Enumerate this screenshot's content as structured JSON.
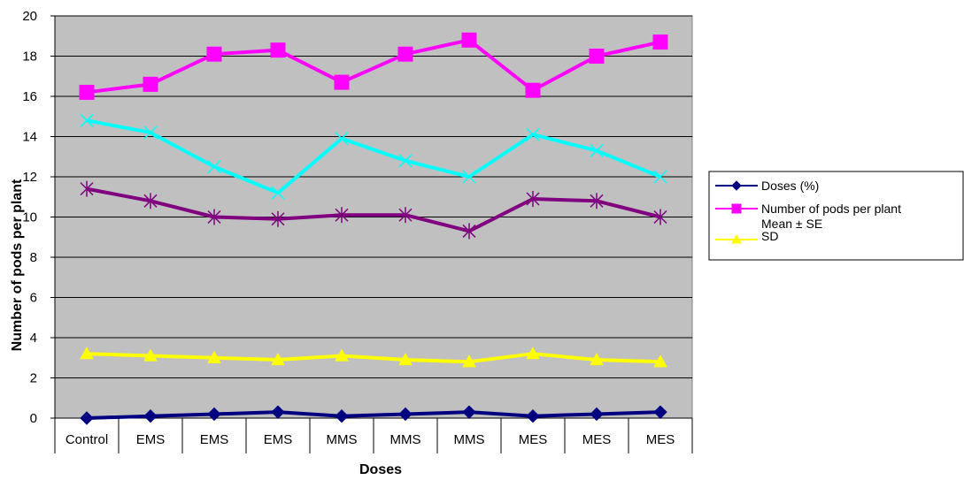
{
  "chart_data": {
    "type": "line",
    "categories": [
      "Control",
      "EMS",
      "EMS",
      "EMS",
      "MMS",
      "MMS",
      "MMS",
      "MES",
      "MES",
      "MES"
    ],
    "xlabel": "Doses",
    "ylabel": "Number of pods per plant",
    "ylim": [
      0,
      20
    ],
    "yticks": [
      0,
      2,
      4,
      6,
      8,
      10,
      12,
      14,
      16,
      18,
      20
    ],
    "ytick_labels": [
      "0",
      "2",
      "4",
      "6",
      "8",
      "10",
      "12",
      "14",
      "16",
      "18",
      "20"
    ],
    "grid": true,
    "legend_position": "right",
    "series": [
      {
        "name": "Doses (%)",
        "color": "#000080",
        "marker": "diamond",
        "values": [
          0,
          0.1,
          0.2,
          0.3,
          0.1,
          0.2,
          0.3,
          0.1,
          0.2,
          0.3
        ]
      },
      {
        "name": "Number of pods per plant",
        "color": "#ff00ff",
        "marker": "square",
        "values": [
          16.2,
          16.6,
          18.1,
          18.3,
          16.7,
          18.1,
          18.8,
          16.3,
          18.0,
          18.7
        ]
      },
      {
        "name": "Mean ± SE",
        "color": "#ffff00",
        "marker": "triangle",
        "values": [
          3.2,
          3.1,
          3.0,
          2.9,
          3.1,
          2.9,
          2.8,
          3.2,
          2.9,
          2.8
        ]
      },
      {
        "name": "SD",
        "color": "#00ffff",
        "marker": "x",
        "values": [
          14.8,
          14.2,
          12.5,
          11.2,
          13.9,
          12.8,
          12.0,
          14.1,
          13.3,
          12.0
        ]
      },
      {
        "name": "",
        "color": "#800080",
        "marker": "star",
        "values": [
          11.4,
          10.8,
          10.0,
          9.9,
          10.1,
          10.1,
          9.3,
          10.9,
          10.8,
          10.0
        ]
      }
    ],
    "legend": {
      "entries": [
        {
          "label": "Doses (%)",
          "color": "#000080",
          "marker": "diamond"
        },
        {
          "label": "Number of pods per plant",
          "color": "#ff00ff",
          "marker": "square"
        },
        {
          "label": "Mean ± SE",
          "color": "#ffff00",
          "marker": "triangle"
        },
        {
          "label": "SD",
          "color": "#ffff00",
          "marker": "triangle"
        }
      ]
    },
    "colors": {
      "plot_background": "#c0c0c0",
      "gridline": "#000000"
    }
  }
}
